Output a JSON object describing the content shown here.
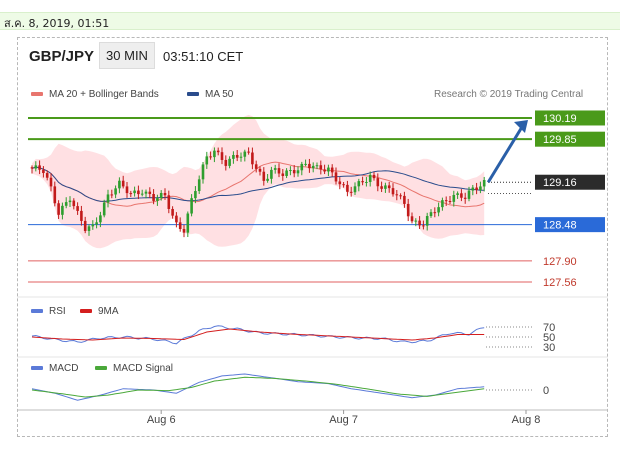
{
  "timestamp": "ส.ค. 8, 2019, 01:51",
  "header": {
    "symbol": "GBP/JPY",
    "timeframe": "30 MIN",
    "time": "03:51:10 CET"
  },
  "credit": "Research © 2019 Trading Central",
  "colors": {
    "ma20": "#e8756e",
    "band": "#ffd6d9",
    "ma50": "#2a4c8c",
    "up": "#2e9e2e",
    "down": "#c21a1a",
    "resistance": "#4a9a1a",
    "support": "#2a6ad8",
    "lower": "#e06060",
    "current": "#2b2b2b",
    "arrow": "#2a5fa8",
    "rsi": "#5b7ad8",
    "rsi_ma": "#d41e1e",
    "macd": "#5b7ad8",
    "macd_signal": "#4aa83a"
  },
  "chart_data": [
    {
      "type": "candlestick",
      "legend": [
        {
          "label": "MA 20 + Bollinger Bands",
          "color": "#e8756e"
        },
        {
          "label": "MA 50",
          "color": "#2a4c8c"
        }
      ],
      "x_ticks": [
        {
          "label": "Aug 6",
          "index": 34
        },
        {
          "label": "Aug 7",
          "index": 82
        },
        {
          "label": "Aug 8",
          "index": 130
        }
      ],
      "levels": [
        {
          "value": 130.19,
          "label": "130.19",
          "style": "resistance"
        },
        {
          "value": 129.85,
          "label": "129.85",
          "style": "resistance"
        },
        {
          "value": 129.16,
          "label": "129.16",
          "style": "current"
        },
        {
          "value": 128.48,
          "label": "128.48",
          "style": "support"
        },
        {
          "value": 127.9,
          "label": "127.90",
          "style": "lower"
        },
        {
          "value": 127.56,
          "label": "127.56",
          "style": "lower"
        }
      ],
      "projection": {
        "from": 129.16,
        "to": 130.19
      },
      "ylim": [
        127.4,
        130.35
      ],
      "anchors": [
        [
          0,
          129.38
        ],
        [
          3,
          129.32
        ],
        [
          5,
          129.05
        ],
        [
          7,
          128.7
        ],
        [
          10,
          128.92
        ],
        [
          12,
          128.62
        ],
        [
          14,
          128.4
        ],
        [
          16,
          128.45
        ],
        [
          18,
          128.7
        ],
        [
          20,
          128.95
        ],
        [
          23,
          129.1
        ],
        [
          26,
          128.98
        ],
        [
          29,
          129.05
        ],
        [
          32,
          128.88
        ],
        [
          35,
          128.92
        ],
        [
          38,
          128.5
        ],
        [
          40,
          128.42
        ],
        [
          42,
          128.85
        ],
        [
          44,
          129.2
        ],
        [
          46,
          129.55
        ],
        [
          48,
          129.7
        ],
        [
          51,
          129.48
        ],
        [
          54,
          129.55
        ],
        [
          57,
          129.62
        ],
        [
          59,
          129.42
        ],
        [
          61,
          129.2
        ],
        [
          63,
          129.32
        ],
        [
          66,
          129.28
        ],
        [
          69,
          129.38
        ],
        [
          72,
          129.45
        ],
        [
          75,
          129.35
        ],
        [
          78,
          129.38
        ],
        [
          81,
          129.18
        ],
        [
          83,
          128.98
        ],
        [
          86,
          129.1
        ],
        [
          89,
          129.28
        ],
        [
          92,
          129.1
        ],
        [
          95,
          128.98
        ],
        [
          98,
          128.82
        ],
        [
          100,
          128.55
        ],
        [
          103,
          128.5
        ],
        [
          105,
          128.62
        ],
        [
          108,
          128.82
        ],
        [
          111,
          128.98
        ],
        [
          114,
          128.92
        ],
        [
          117,
          129.05
        ],
        [
          119,
          129.16
        ]
      ]
    },
    {
      "type": "line",
      "name": "RSI panel",
      "legend": [
        {
          "label": "RSI",
          "color": "#5b7ad8"
        },
        {
          "label": "9MA",
          "color": "#d41e1e"
        }
      ],
      "y_ticks": [
        "70",
        "50",
        "30"
      ],
      "series": [
        {
          "name": "RSI",
          "anchors": [
            [
              0,
              52
            ],
            [
              6,
              45
            ],
            [
              12,
              40
            ],
            [
              18,
              48
            ],
            [
              24,
              50
            ],
            [
              32,
              46
            ],
            [
              38,
              38
            ],
            [
              44,
              62
            ],
            [
              48,
              72
            ],
            [
              54,
              66
            ],
            [
              60,
              58
            ],
            [
              66,
              56
            ],
            [
              72,
              54
            ],
            [
              80,
              50
            ],
            [
              86,
              48
            ],
            [
              92,
              47
            ],
            [
              98,
              40
            ],
            [
              104,
              42
            ],
            [
              110,
              58
            ],
            [
              115,
              56
            ],
            [
              119,
              70
            ]
          ]
        },
        {
          "name": "9MA",
          "anchors": [
            [
              0,
              50
            ],
            [
              8,
              46
            ],
            [
              16,
              44
            ],
            [
              24,
              48
            ],
            [
              32,
              47
            ],
            [
              40,
              45
            ],
            [
              46,
              60
            ],
            [
              52,
              66
            ],
            [
              60,
              60
            ],
            [
              68,
              56
            ],
            [
              76,
              53
            ],
            [
              84,
              50
            ],
            [
              92,
              47
            ],
            [
              100,
              44
            ],
            [
              106,
              48
            ],
            [
              112,
              55
            ],
            [
              119,
              55
            ]
          ]
        }
      ]
    },
    {
      "type": "line",
      "name": "MACD panel",
      "legend": [
        {
          "label": "MACD",
          "color": "#5b7ad8"
        },
        {
          "label": "MACD Signal",
          "color": "#4aa83a"
        }
      ],
      "y_ticks": [
        "0"
      ],
      "series": [
        {
          "name": "MACD",
          "anchors": [
            [
              0,
              0.02
            ],
            [
              6,
              -0.05
            ],
            [
              12,
              -0.16
            ],
            [
              18,
              -0.08
            ],
            [
              24,
              0.02
            ],
            [
              32,
              0.0
            ],
            [
              38,
              -0.05
            ],
            [
              44,
              0.12
            ],
            [
              50,
              0.22
            ],
            [
              56,
              0.25
            ],
            [
              62,
              0.2
            ],
            [
              70,
              0.13
            ],
            [
              78,
              0.1
            ],
            [
              84,
              0.02
            ],
            [
              92,
              -0.05
            ],
            [
              100,
              -0.12
            ],
            [
              106,
              -0.08
            ],
            [
              112,
              0.02
            ],
            [
              119,
              0.05
            ]
          ]
        },
        {
          "name": "MACD Signal",
          "anchors": [
            [
              0,
              0.0
            ],
            [
              8,
              -0.06
            ],
            [
              14,
              -0.11
            ],
            [
              20,
              -0.08
            ],
            [
              28,
              0.0
            ],
            [
              36,
              -0.01
            ],
            [
              42,
              0.04
            ],
            [
              48,
              0.14
            ],
            [
              56,
              0.2
            ],
            [
              64,
              0.18
            ],
            [
              72,
              0.14
            ],
            [
              80,
              0.09
            ],
            [
              88,
              0.02
            ],
            [
              96,
              -0.06
            ],
            [
              104,
              -0.1
            ],
            [
              110,
              -0.05
            ],
            [
              119,
              0.02
            ]
          ]
        }
      ]
    }
  ]
}
